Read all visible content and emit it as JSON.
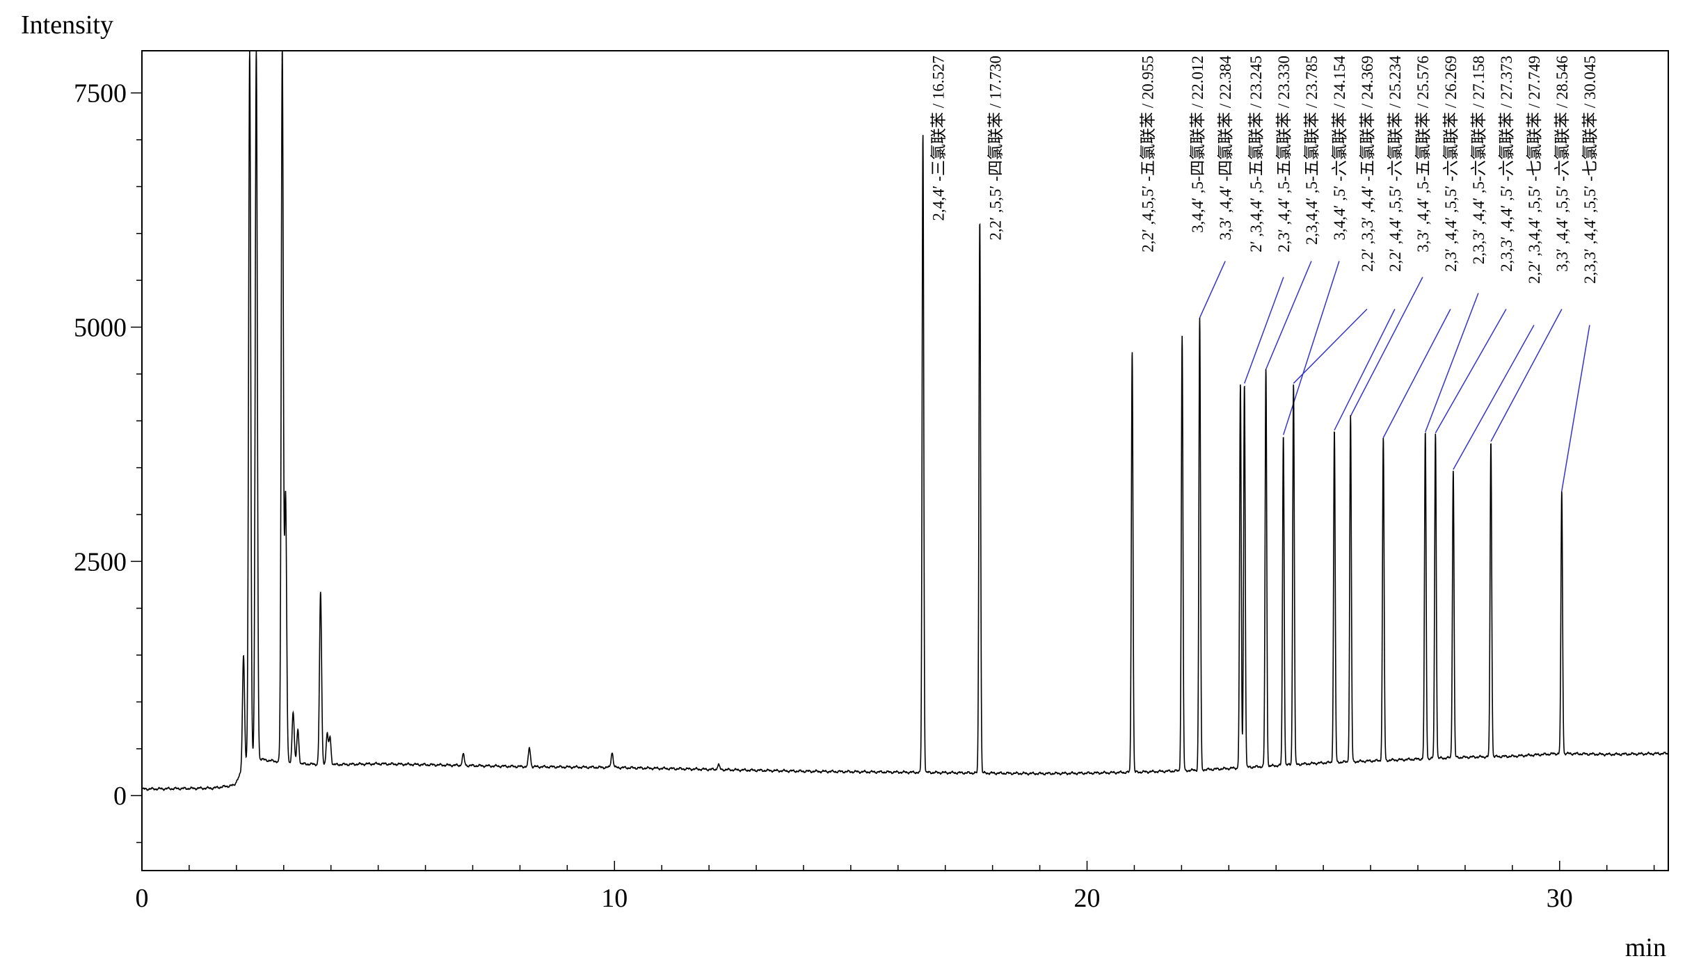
{
  "chart_data": {
    "type": "line",
    "title": "",
    "xlabel": "min",
    "ylabel": "Intensity",
    "xlim": [
      0,
      32.3
    ],
    "ylim": [
      -800,
      7950
    ],
    "x_ticks": [
      0,
      10,
      20,
      30
    ],
    "x_tick_labels": [
      "0",
      "10",
      "20",
      "30"
    ],
    "y_ticks": [
      0,
      2500,
      5000,
      7500
    ],
    "y_tick_labels": [
      "0",
      "2500",
      "5000",
      "7500"
    ],
    "grid": false,
    "legend": "none",
    "line_color": "#000000",
    "leader_color": "#3333cc",
    "baseline": [
      [
        0,
        70
      ],
      [
        1.5,
        80
      ],
      [
        1.95,
        110
      ],
      [
        2.3,
        420
      ],
      [
        2.6,
        380
      ],
      [
        3.3,
        340
      ],
      [
        4.0,
        330
      ],
      [
        5,
        340
      ],
      [
        6,
        330
      ],
      [
        7,
        320
      ],
      [
        8,
        310
      ],
      [
        9,
        305
      ],
      [
        10,
        300
      ],
      [
        12,
        280
      ],
      [
        14,
        260
      ],
      [
        16,
        250
      ],
      [
        17,
        245
      ],
      [
        18,
        240
      ],
      [
        19,
        235
      ],
      [
        20,
        240
      ],
      [
        21,
        250
      ],
      [
        22,
        265
      ],
      [
        23,
        290
      ],
      [
        24,
        320
      ],
      [
        25,
        350
      ],
      [
        26,
        370
      ],
      [
        27,
        390
      ],
      [
        28,
        410
      ],
      [
        29,
        420
      ],
      [
        30,
        450
      ],
      [
        31,
        440
      ],
      [
        32.3,
        450
      ]
    ],
    "solvent_peaks": [
      {
        "x": 2.15,
        "y": 1500
      },
      {
        "x": 2.28,
        "y": 7950
      },
      {
        "x": 2.42,
        "y": 7950
      },
      {
        "x": 2.97,
        "y": 7950
      },
      {
        "x": 3.04,
        "y": 3200
      },
      {
        "x": 3.2,
        "y": 900
      },
      {
        "x": 3.3,
        "y": 700
      },
      {
        "x": 3.78,
        "y": 2160
      },
      {
        "x": 3.92,
        "y": 650
      },
      {
        "x": 3.98,
        "y": 620
      },
      {
        "x": 6.8,
        "y": 440
      },
      {
        "x": 8.2,
        "y": 510
      },
      {
        "x": 9.95,
        "y": 460
      },
      {
        "x": 12.2,
        "y": 330
      }
    ],
    "peaks": [
      {
        "x": 16.527,
        "y": 7060,
        "label": "2,4,4′ -三氯联苯 / 16.527"
      },
      {
        "x": 17.73,
        "y": 6150,
        "label": "2,2′ ,5,5′ -四氯联苯 / 17.730"
      },
      {
        "x": 20.955,
        "y": 4750,
        "label": "2,2′ ,4,5,5′ -五氯联苯 / 20.955"
      },
      {
        "x": 22.012,
        "y": 4900,
        "label": "3,4,4′ ,5-四氯联苯 / 22.012"
      },
      {
        "x": 22.384,
        "y": 5100,
        "label": "3,3′ ,4,4′ -四氯联苯 / 22.384"
      },
      {
        "x": 23.245,
        "y": 4380,
        "label": "2′ ,3,4,4′ ,5-五氯联苯 / 23.245"
      },
      {
        "x": 23.33,
        "y": 4400,
        "label": "2,3′ ,4,4′ ,5-五氯联苯 / 23.330"
      },
      {
        "x": 23.785,
        "y": 4550,
        "label": "2,3,4,4′ ,5-五氯联苯 / 23.785"
      },
      {
        "x": 24.154,
        "y": 3850,
        "label": "3,4,4′ ,5′ -六氯联苯 / 24.154"
      },
      {
        "x": 24.369,
        "y": 4400,
        "label": "2,2′ ,3,3′ ,4,4′ -五氯联苯 / 24.369"
      },
      {
        "x": 25.234,
        "y": 3900,
        "label": "2,2′ ,4,4′ ,5,5′ -六氯联苯 / 25.234"
      },
      {
        "x": 25.576,
        "y": 4050,
        "label": "3,3′ ,4,4′ ,5-五氯联苯 / 25.576"
      },
      {
        "x": 26.269,
        "y": 3820,
        "label": "2,3′ ,4,4′ ,5,5′ -六氯联苯 / 26.269"
      },
      {
        "x": 27.158,
        "y": 3880,
        "label": "2,3,3′ ,4,4′ ,5-六氯联苯 / 27.158"
      },
      {
        "x": 27.373,
        "y": 3870,
        "label": "2,3,3′ ,4,4′ ,5′ -六氯联苯 / 27.373"
      },
      {
        "x": 27.749,
        "y": 3480,
        "label": "2,2′ ,3,4,4′ ,5,5′ -七氯联苯 / 27.749"
      },
      {
        "x": 28.546,
        "y": 3780,
        "label": "3,3′ ,4,4′ ,5,5′ -六氯联苯 / 28.546"
      },
      {
        "x": 30.045,
        "y": 3250,
        "label": "2,3,3′ ,4,4′ ,5,5′ -七氯联苯 / 30.045"
      }
    ]
  }
}
